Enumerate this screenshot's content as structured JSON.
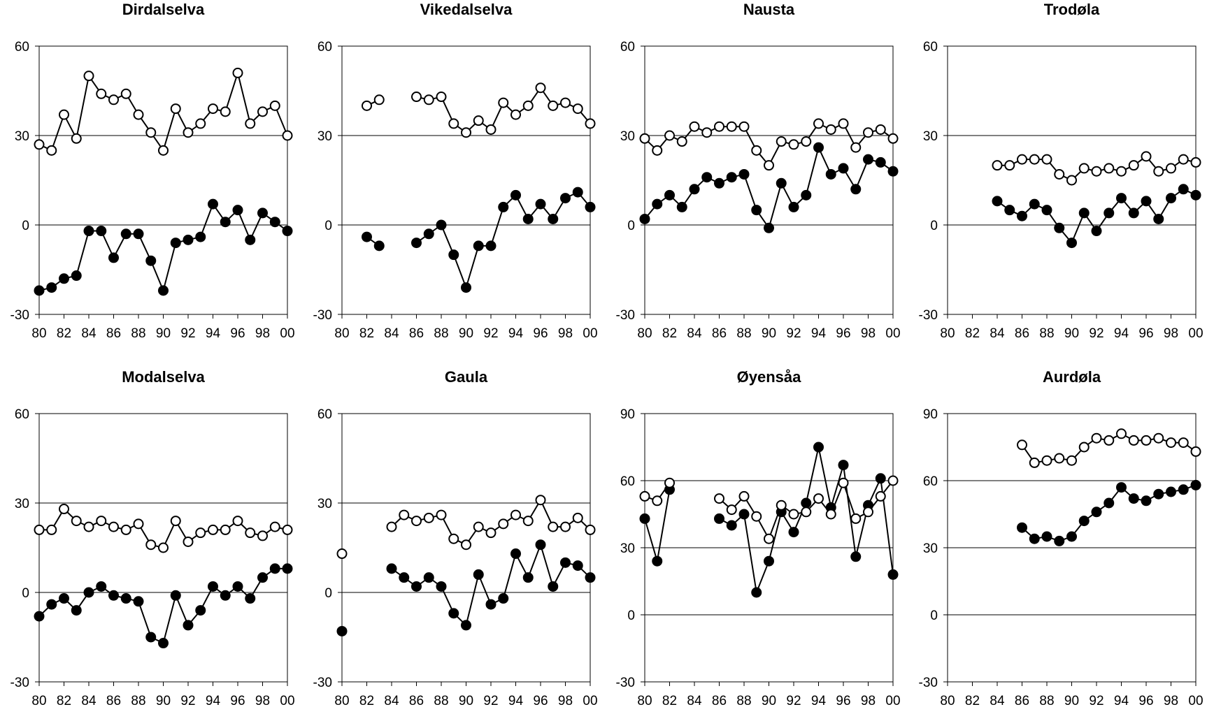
{
  "chart_data": [
    {
      "type": "line",
      "title": "Dirdalselva",
      "x_labels": [
        "80",
        "82",
        "84",
        "86",
        "88",
        "90",
        "92",
        "94",
        "96",
        "98",
        "00"
      ],
      "xlim": [
        1980,
        2000
      ],
      "ylim": [
        -30,
        60
      ],
      "y_ticks": [
        -30,
        0,
        30,
        60
      ],
      "grid": true,
      "x": [
        1980,
        1981,
        1982,
        1983,
        1984,
        1985,
        1986,
        1987,
        1988,
        1989,
        1990,
        1991,
        1992,
        1993,
        1994,
        1995,
        1996,
        1997,
        1998,
        1999,
        2000
      ],
      "series": [
        {
          "marker": "open",
          "values": [
            27,
            25,
            37,
            29,
            50,
            44,
            42,
            44,
            37,
            31,
            25,
            39,
            31,
            34,
            39,
            38,
            51,
            34,
            38,
            40,
            30
          ]
        },
        {
          "marker": "filled",
          "values": [
            -22,
            -21,
            -18,
            -17,
            -2,
            -2,
            -11,
            -3,
            -3,
            -12,
            -22,
            -6,
            -5,
            -4,
            7,
            1,
            5,
            -5,
            4,
            1,
            -2
          ]
        }
      ]
    },
    {
      "type": "line",
      "title": "Vikedalselva",
      "x_labels": [
        "80",
        "82",
        "84",
        "86",
        "88",
        "90",
        "92",
        "94",
        "96",
        "98",
        "00"
      ],
      "xlim": [
        1980,
        2000
      ],
      "ylim": [
        -30,
        60
      ],
      "y_ticks": [
        -30,
        0,
        30,
        60
      ],
      "grid": true,
      "x": [
        1980,
        1981,
        1982,
        1983,
        1984,
        1985,
        1986,
        1987,
        1988,
        1989,
        1990,
        1991,
        1992,
        1993,
        1994,
        1995,
        1996,
        1997,
        1998,
        1999,
        2000
      ],
      "series": [
        {
          "marker": "open",
          "values": [
            null,
            null,
            40,
            42,
            null,
            null,
            43,
            42,
            43,
            34,
            31,
            35,
            32,
            41,
            37,
            40,
            46,
            40,
            41,
            39,
            34
          ]
        },
        {
          "marker": "filled",
          "values": [
            null,
            null,
            -4,
            -7,
            null,
            null,
            -6,
            -3,
            0,
            -10,
            -21,
            -7,
            -7,
            6,
            10,
            2,
            7,
            2,
            9,
            11,
            6
          ]
        }
      ]
    },
    {
      "type": "line",
      "title": "Nausta",
      "x_labels": [
        "80",
        "82",
        "84",
        "86",
        "88",
        "90",
        "92",
        "94",
        "96",
        "98",
        "00"
      ],
      "xlim": [
        1980,
        2000
      ],
      "ylim": [
        -30,
        60
      ],
      "y_ticks": [
        -30,
        0,
        30,
        60
      ],
      "grid": true,
      "x": [
        1980,
        1981,
        1982,
        1983,
        1984,
        1985,
        1986,
        1987,
        1988,
        1989,
        1990,
        1991,
        1992,
        1993,
        1994,
        1995,
        1996,
        1997,
        1998,
        1999,
        2000
      ],
      "series": [
        {
          "marker": "open",
          "values": [
            29,
            25,
            30,
            28,
            33,
            31,
            33,
            33,
            33,
            25,
            20,
            28,
            27,
            28,
            34,
            32,
            34,
            26,
            31,
            32,
            29
          ]
        },
        {
          "marker": "filled",
          "values": [
            2,
            7,
            10,
            6,
            12,
            16,
            14,
            16,
            17,
            5,
            -1,
            14,
            6,
            10,
            26,
            17,
            19,
            12,
            22,
            21,
            18
          ]
        }
      ]
    },
    {
      "type": "line",
      "title": "Trodøla",
      "x_labels": [
        "80",
        "82",
        "84",
        "86",
        "88",
        "90",
        "92",
        "94",
        "96",
        "98",
        "00"
      ],
      "xlim": [
        1980,
        2000
      ],
      "ylim": [
        -30,
        60
      ],
      "y_ticks": [
        -30,
        0,
        30,
        60
      ],
      "grid": true,
      "x": [
        1980,
        1981,
        1982,
        1983,
        1984,
        1985,
        1986,
        1987,
        1988,
        1989,
        1990,
        1991,
        1992,
        1993,
        1994,
        1995,
        1996,
        1997,
        1998,
        1999,
        2000
      ],
      "series": [
        {
          "marker": "open",
          "values": [
            null,
            null,
            null,
            null,
            20,
            20,
            22,
            22,
            22,
            17,
            15,
            19,
            18,
            19,
            18,
            20,
            23,
            18,
            19,
            22,
            21
          ]
        },
        {
          "marker": "filled",
          "values": [
            null,
            null,
            null,
            null,
            8,
            5,
            3,
            7,
            5,
            -1,
            -6,
            4,
            -2,
            4,
            9,
            4,
            8,
            2,
            9,
            12,
            10
          ]
        }
      ]
    },
    {
      "type": "line",
      "title": "Modalselva",
      "x_labels": [
        "80",
        "82",
        "84",
        "86",
        "88",
        "90",
        "92",
        "94",
        "96",
        "98",
        "00"
      ],
      "xlim": [
        1980,
        2000
      ],
      "ylim": [
        -30,
        60
      ],
      "y_ticks": [
        -30,
        0,
        30,
        60
      ],
      "grid": true,
      "x": [
        1980,
        1981,
        1982,
        1983,
        1984,
        1985,
        1986,
        1987,
        1988,
        1989,
        1990,
        1991,
        1992,
        1993,
        1994,
        1995,
        1996,
        1997,
        1998,
        1999,
        2000
      ],
      "series": [
        {
          "marker": "open",
          "values": [
            21,
            21,
            28,
            24,
            22,
            24,
            22,
            21,
            23,
            16,
            15,
            24,
            17,
            20,
            21,
            21,
            24,
            20,
            19,
            22,
            21
          ]
        },
        {
          "marker": "filled",
          "values": [
            -8,
            -4,
            -2,
            -6,
            0,
            2,
            -1,
            -2,
            -3,
            -15,
            -17,
            -1,
            -11,
            -6,
            2,
            -1,
            2,
            -2,
            5,
            8,
            8
          ]
        }
      ]
    },
    {
      "type": "line",
      "title": "Gaula",
      "x_labels": [
        "80",
        "82",
        "84",
        "86",
        "88",
        "90",
        "92",
        "94",
        "96",
        "98",
        "00"
      ],
      "xlim": [
        1980,
        2000
      ],
      "ylim": [
        -30,
        60
      ],
      "y_ticks": [
        -30,
        0,
        30,
        60
      ],
      "grid": true,
      "x": [
        1980,
        1981,
        1982,
        1983,
        1984,
        1985,
        1986,
        1987,
        1988,
        1989,
        1990,
        1991,
        1992,
        1993,
        1994,
        1995,
        1996,
        1997,
        1998,
        1999,
        2000
      ],
      "series": [
        {
          "marker": "open",
          "values": [
            13,
            null,
            null,
            null,
            22,
            26,
            24,
            25,
            26,
            18,
            16,
            22,
            20,
            23,
            26,
            24,
            31,
            22,
            22,
            25,
            21
          ]
        },
        {
          "marker": "filled",
          "values": [
            -13,
            null,
            null,
            null,
            8,
            5,
            2,
            5,
            2,
            -7,
            -11,
            6,
            -4,
            -2,
            13,
            5,
            16,
            2,
            10,
            9,
            5
          ]
        }
      ]
    },
    {
      "type": "line",
      "title": "Øyensåa",
      "x_labels": [
        "80",
        "82",
        "84",
        "86",
        "88",
        "90",
        "92",
        "94",
        "96",
        "98",
        "00"
      ],
      "xlim": [
        1980,
        2000
      ],
      "ylim": [
        -30,
        90
      ],
      "y_ticks": [
        -30,
        0,
        30,
        60,
        90
      ],
      "grid": true,
      "x": [
        1980,
        1981,
        1982,
        1983,
        1984,
        1985,
        1986,
        1987,
        1988,
        1989,
        1990,
        1991,
        1992,
        1993,
        1994,
        1995,
        1996,
        1997,
        1998,
        1999,
        2000
      ],
      "series": [
        {
          "marker": "open",
          "values": [
            53,
            51,
            59,
            null,
            null,
            null,
            52,
            47,
            53,
            44,
            34,
            49,
            45,
            46,
            52,
            45,
            59,
            43,
            46,
            53,
            60
          ]
        },
        {
          "marker": "filled",
          "values": [
            43,
            24,
            56,
            null,
            null,
            null,
            43,
            40,
            45,
            10,
            24,
            46,
            37,
            50,
            75,
            48,
            67,
            26,
            49,
            61,
            18
          ]
        }
      ]
    },
    {
      "type": "line",
      "title": "Aurdøla",
      "x_labels": [
        "80",
        "82",
        "84",
        "86",
        "88",
        "90",
        "92",
        "94",
        "96",
        "98",
        "00"
      ],
      "xlim": [
        1980,
        2000
      ],
      "ylim": [
        -30,
        90
      ],
      "y_ticks": [
        -30,
        0,
        30,
        60,
        90
      ],
      "grid": true,
      "x": [
        1980,
        1981,
        1982,
        1983,
        1984,
        1985,
        1986,
        1987,
        1988,
        1989,
        1990,
        1991,
        1992,
        1993,
        1994,
        1995,
        1996,
        1997,
        1998,
        1999,
        2000
      ],
      "series": [
        {
          "marker": "open",
          "values": [
            null,
            null,
            null,
            null,
            null,
            null,
            76,
            68,
            69,
            70,
            69,
            75,
            79,
            78,
            81,
            78,
            78,
            79,
            77,
            77,
            73
          ]
        },
        {
          "marker": "filled",
          "values": [
            null,
            null,
            null,
            null,
            null,
            null,
            39,
            34,
            35,
            33,
            35,
            42,
            46,
            50,
            57,
            52,
            51,
            54,
            55,
            56,
            58
          ]
        }
      ]
    }
  ]
}
